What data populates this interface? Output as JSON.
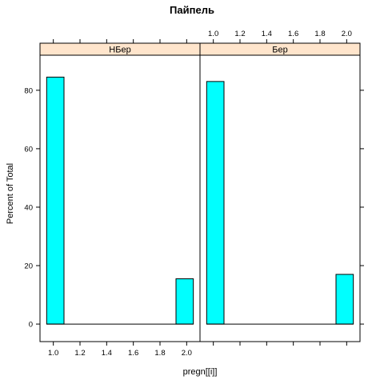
{
  "chart_data": {
    "type": "bar",
    "title": "Пайпель",
    "xlabel": "pregn[[i]]",
    "ylabel": "Percent of Total",
    "xlim": [
      0.9,
      2.1
    ],
    "ylim": [
      -6,
      92
    ],
    "x_ticks": [
      "1.0",
      "1.2",
      "1.4",
      "1.6",
      "1.8",
      "2.0"
    ],
    "y_ticks": [
      "0",
      "20",
      "40",
      "60",
      "80"
    ],
    "bar_color": "#00FFFF",
    "strip_color": "#FFE5CC",
    "panels": [
      {
        "name": "НБер",
        "bars": [
          {
            "x0": 0.95,
            "x1": 1.08,
            "value": 84.5
          },
          {
            "x0": 1.92,
            "x1": 2.05,
            "value": 15.5
          }
        ]
      },
      {
        "name": "Бер",
        "bars": [
          {
            "x0": 0.95,
            "x1": 1.08,
            "value": 83.0
          },
          {
            "x0": 1.92,
            "x1": 2.05,
            "value": 17.0
          }
        ]
      }
    ]
  }
}
